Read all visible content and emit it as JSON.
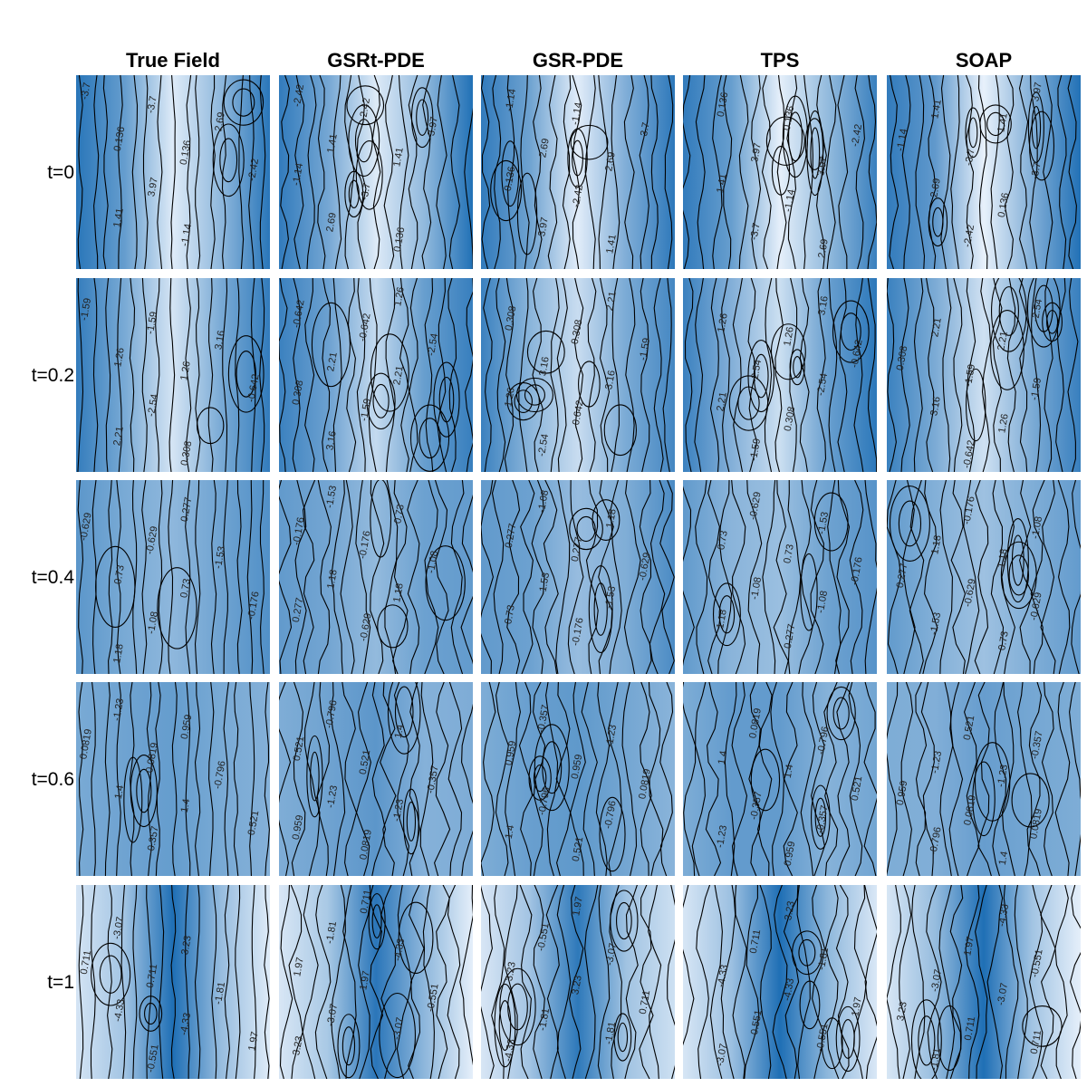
{
  "chart_data": {
    "type": "heatmap",
    "layout": "small-multiples",
    "columns": [
      "True Field",
      "GSRt-PDE",
      "GSR-PDE",
      "TPS",
      "SOAP"
    ],
    "rows": [
      "t=0",
      "t=0.2",
      "t=0.4",
      "t=0.6",
      "t=1"
    ],
    "colormap": {
      "low": "#e8f1fb",
      "high": "#1f6fb5"
    },
    "contour_levels": [
      {
        "row": "t=0",
        "levels": [
          "-3.7",
          "-2.42",
          "-1.14",
          "0.136",
          "1.41",
          "2.69",
          "3.97"
        ]
      },
      {
        "row": "t=0.2",
        "levels": [
          "-2.54",
          "-1.59",
          "-0.642",
          "0.308",
          "1.26",
          "2.21",
          "3.16"
        ]
      },
      {
        "row": "t=0.4",
        "levels": [
          "-1.53",
          "-1.08",
          "-0.629",
          "-0.176",
          "0.277",
          "0.73",
          "1.18"
        ]
      },
      {
        "row": "t=0.6",
        "levels": [
          "-1.23",
          "-0.796",
          "-0.357",
          "0.0819",
          "0.521",
          "0.959",
          "1.4"
        ]
      },
      {
        "row": "t=1",
        "levels": [
          "-4.33",
          "-3.07",
          "-1.81",
          "-0.551",
          "0.711",
          "1.97",
          "3.23"
        ]
      }
    ]
  }
}
